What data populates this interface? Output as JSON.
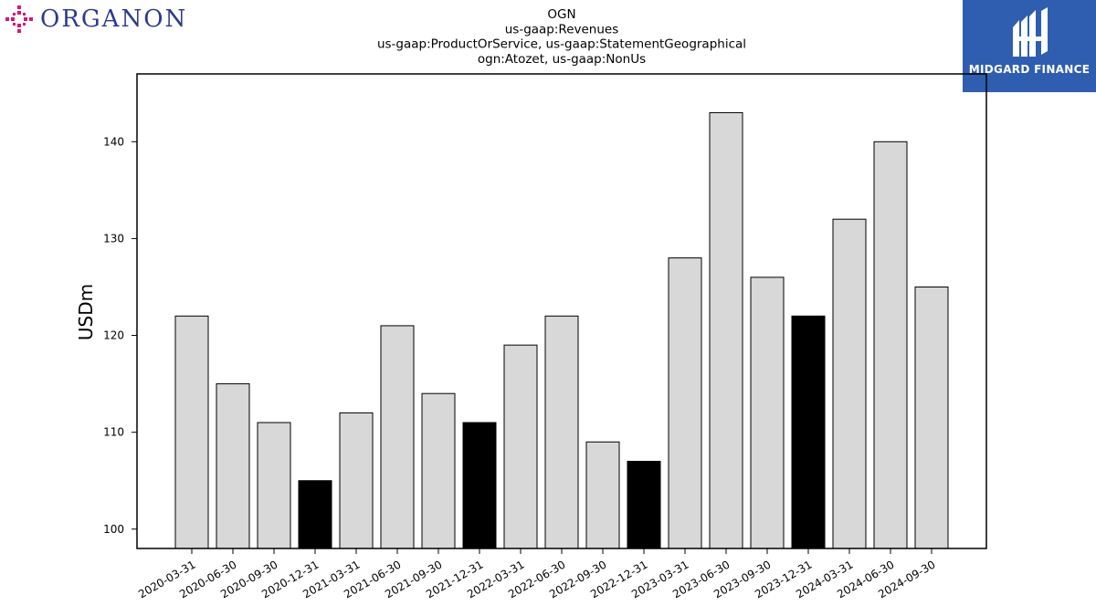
{
  "logos": {
    "left_text": "ORGANON",
    "right_text": "MIDGARD FINANCE",
    "left_color": "#d6157a",
    "right_bg": "#2f5eb0"
  },
  "chart_data": {
    "type": "bar",
    "title_lines": [
      "OGN",
      "us-gaap:Revenues",
      "us-gaap:ProductOrService, us-gaap:StatementGeographical",
      "ogn:Atozet, us-gaap:NonUs"
    ],
    "ylabel": "USDm",
    "xlabel": "",
    "ylim": [
      98,
      147
    ],
    "yticks": [
      100,
      110,
      120,
      130,
      140
    ],
    "categories": [
      "2020-03-31",
      "2020-06-30",
      "2020-09-30",
      "2020-12-31",
      "2021-03-31",
      "2021-06-30",
      "2021-09-30",
      "2021-12-31",
      "2022-03-31",
      "2022-06-30",
      "2022-09-30",
      "2022-12-31",
      "2023-03-31",
      "2023-06-30",
      "2023-09-30",
      "2023-12-31",
      "2024-03-31",
      "2024-06-30",
      "2024-09-30"
    ],
    "values": [
      122,
      115,
      111,
      105,
      112,
      121,
      114,
      111,
      119,
      122,
      109,
      107,
      128,
      143,
      126,
      122,
      132,
      140,
      125
    ],
    "highlight": [
      false,
      false,
      false,
      true,
      false,
      false,
      false,
      true,
      false,
      false,
      false,
      true,
      false,
      false,
      false,
      true,
      false,
      false,
      false
    ],
    "colors": {
      "bar": "#d8d8d8",
      "highlight": "#000000",
      "edge": "#000000"
    },
    "grid": false
  }
}
